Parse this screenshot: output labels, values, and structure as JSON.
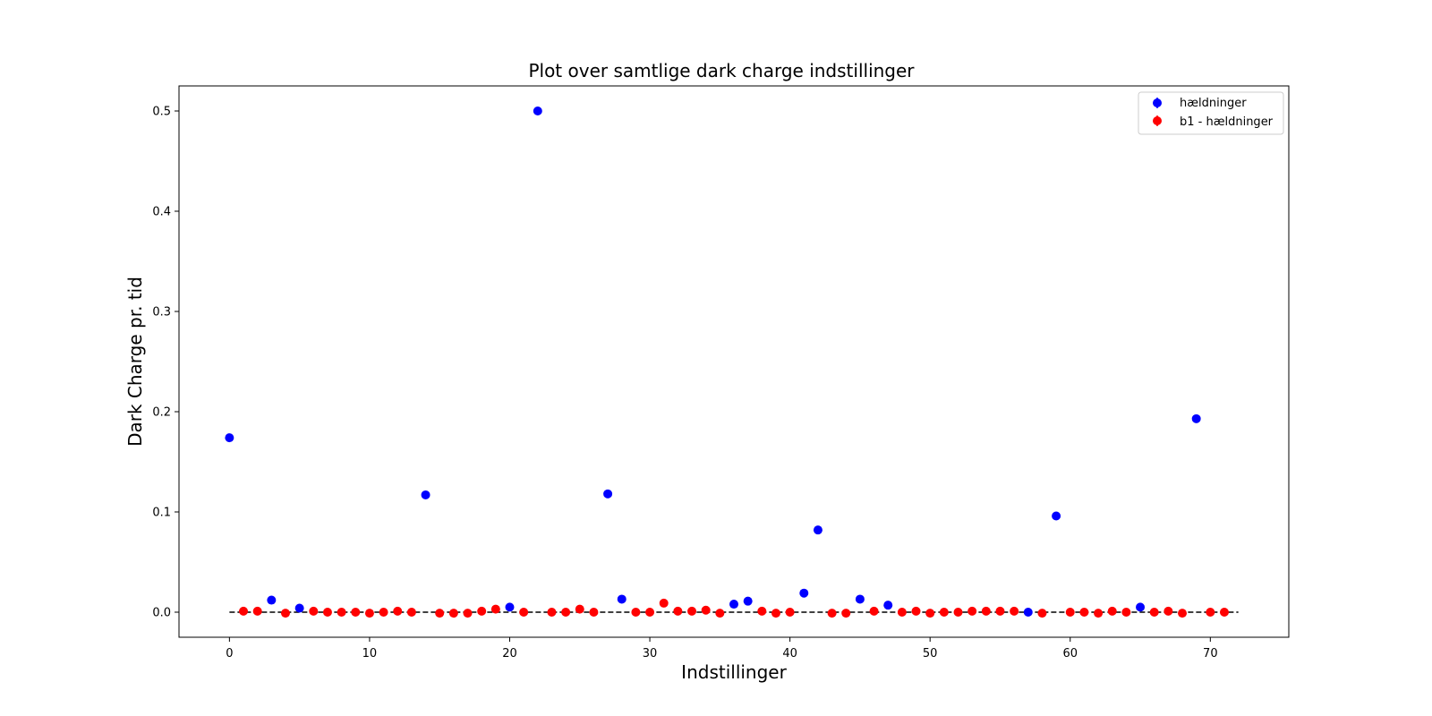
{
  "chart_data": {
    "type": "scatter",
    "title": "Plot over samtlige dark charge indstillinger",
    "xlabel": "Indstillinger",
    "ylabel": "Dark Charge pr. tid",
    "xlim": [
      -3.6,
      75.6
    ],
    "ylim": [
      -0.025,
      0.525
    ],
    "xticks": [
      0,
      10,
      20,
      30,
      40,
      50,
      60,
      70
    ],
    "yticks": [
      0.0,
      0.1,
      0.2,
      0.3,
      0.4,
      0.5
    ],
    "ytick_labels": [
      "0.0",
      "0.1",
      "0.2",
      "0.3",
      "0.4",
      "0.5"
    ],
    "grid": false,
    "legend_position": "upper right",
    "reference_line": {
      "y": 0.0,
      "x_range": [
        0,
        72
      ],
      "style": "dashed",
      "color": "#000000"
    },
    "series": [
      {
        "name": "hældninger",
        "color": "#0000ff",
        "points": [
          [
            0,
            0.174
          ],
          [
            3,
            0.012
          ],
          [
            5,
            0.004
          ],
          [
            14,
            0.117
          ],
          [
            20,
            0.005
          ],
          [
            22,
            0.5
          ],
          [
            27,
            0.118
          ],
          [
            28,
            0.013
          ],
          [
            36,
            0.008
          ],
          [
            37,
            0.011
          ],
          [
            41,
            0.019
          ],
          [
            42,
            0.082
          ],
          [
            45,
            0.013
          ],
          [
            47,
            0.007
          ],
          [
            57,
            0.0
          ],
          [
            59,
            0.096
          ],
          [
            65,
            0.005
          ],
          [
            69,
            0.193
          ]
        ]
      },
      {
        "name": "b1 - hældninger",
        "color": "#ff0000",
        "points": [
          [
            1,
            0.001
          ],
          [
            2,
            0.001
          ],
          [
            4,
            -0.001
          ],
          [
            6,
            0.001
          ],
          [
            7,
            0.0
          ],
          [
            8,
            0.0
          ],
          [
            9,
            0.0
          ],
          [
            10,
            -0.001
          ],
          [
            11,
            0.0
          ],
          [
            12,
            0.001
          ],
          [
            13,
            0.0
          ],
          [
            15,
            -0.001
          ],
          [
            16,
            -0.001
          ],
          [
            17,
            -0.001
          ],
          [
            18,
            0.001
          ],
          [
            19,
            0.003
          ],
          [
            21,
            0.0
          ],
          [
            23,
            0.0
          ],
          [
            24,
            0.0
          ],
          [
            25,
            0.003
          ],
          [
            26,
            0.0
          ],
          [
            29,
            0.0
          ],
          [
            30,
            0.0
          ],
          [
            31,
            0.009
          ],
          [
            32,
            0.001
          ],
          [
            33,
            0.001
          ],
          [
            34,
            0.002
          ],
          [
            35,
            -0.001
          ],
          [
            38,
            0.001
          ],
          [
            39,
            -0.001
          ],
          [
            40,
            0.0
          ],
          [
            43,
            -0.001
          ],
          [
            44,
            -0.001
          ],
          [
            46,
            0.001
          ],
          [
            48,
            0.0
          ],
          [
            49,
            0.001
          ],
          [
            50,
            -0.001
          ],
          [
            51,
            0.0
          ],
          [
            52,
            0.0
          ],
          [
            53,
            0.001
          ],
          [
            54,
            0.001
          ],
          [
            55,
            0.001
          ],
          [
            56,
            0.001
          ],
          [
            58,
            -0.001
          ],
          [
            60,
            0.0
          ],
          [
            61,
            0.0
          ],
          [
            62,
            -0.001
          ],
          [
            63,
            0.001
          ],
          [
            64,
            0.0
          ],
          [
            66,
            0.0
          ],
          [
            67,
            0.001
          ],
          [
            68,
            -0.001
          ],
          [
            70,
            0.0
          ],
          [
            71,
            0.0
          ]
        ]
      }
    ]
  }
}
